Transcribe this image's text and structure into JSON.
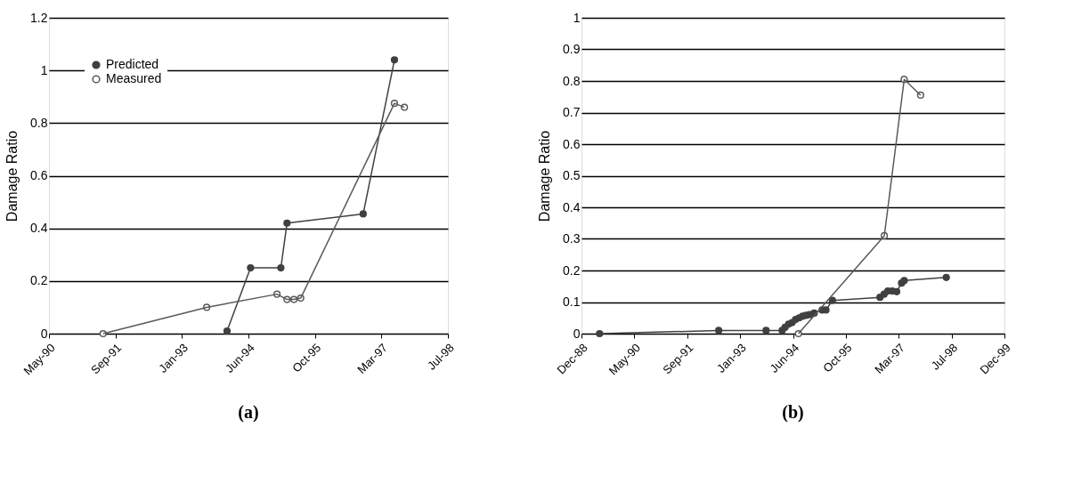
{
  "chart_data": [
    {
      "type": "line",
      "title": "(a)",
      "ylabel": "Damage Ratio",
      "marker": "circle",
      "line_style": "solid",
      "grid": "y",
      "legend": "top left",
      "xlim": [
        "1990-05-03",
        "1998-07-20"
      ],
      "xticks": [
        {
          "value": "1990-05-03",
          "label": "May-90"
        },
        {
          "value": "1991-09-15",
          "label": "Sep-91"
        },
        {
          "value": "1993-01-27",
          "label": "Jan-93"
        },
        {
          "value": "1994-06-11",
          "label": "Jun-94"
        },
        {
          "value": "1995-10-24",
          "label": "Oct-95"
        },
        {
          "value": "1997-03-07",
          "label": "Mar-97"
        },
        {
          "value": "1998-07-20",
          "label": "Jul-98"
        }
      ],
      "ylim": [
        0,
        1.2
      ],
      "yticks": [
        0,
        0.2,
        0.4,
        0.6,
        0.8,
        1,
        1.2
      ],
      "series": [
        {
          "name": "Predicted",
          "color": "#404040",
          "x": [
            "1994-01-01",
            "1994-06-27",
            "1995-02-10",
            "1995-03-28",
            "1996-10-21",
            "1997-06-13"
          ],
          "values": [
            0.01,
            0.25,
            0.25,
            0.42,
            0.455,
            1.04
          ]
        },
        {
          "name": "Measured",
          "color": "#595959",
          "x": [
            "1991-06-14",
            "1993-08-01",
            "1995-01-12",
            "1995-03-28",
            "1995-05-19",
            "1995-07-09",
            "1997-06-13",
            "1997-08-27"
          ],
          "values": [
            0,
            0.1,
            0.15,
            0.13,
            0.13,
            0.135,
            0.875,
            0.86
          ]
        }
      ]
    },
    {
      "type": "line",
      "title": "(b)",
      "ylabel": "Damage Ratio",
      "marker": "circle",
      "line_style": "solid",
      "grid": "y",
      "legend": "top left",
      "xlim": [
        "1988-12-19",
        "1999-12-02"
      ],
      "xticks": [
        {
          "value": "1988-12-19",
          "label": "Dec-88"
        },
        {
          "value": "1990-05-03",
          "label": "May-90"
        },
        {
          "value": "1991-09-15",
          "label": "Sep-91"
        },
        {
          "value": "1993-01-27",
          "label": "Jan-93"
        },
        {
          "value": "1994-06-11",
          "label": "Jun-94"
        },
        {
          "value": "1995-10-24",
          "label": "Oct-95"
        },
        {
          "value": "1997-03-07",
          "label": "Mar-97"
        },
        {
          "value": "1998-07-20",
          "label": "Jul-98"
        },
        {
          "value": "1999-12-02",
          "label": "Dec-99"
        }
      ],
      "ylim": [
        0,
        1
      ],
      "yticks": [
        0,
        0.1,
        0.2,
        0.3,
        0.4,
        0.5,
        0.6,
        0.7,
        0.8,
        0.9,
        1
      ],
      "series": [
        {
          "name": "Predicted",
          "color": "#404040",
          "x": [
            "1989-06-08",
            "1992-07-09",
            "1993-09-30",
            "1994-03-01",
            "1994-03-28",
            "1994-05-01",
            "1994-06-03",
            "1994-07-06",
            "1994-08-08",
            "1994-09-10",
            "1994-10-13",
            "1994-11-15",
            "1994-12-29",
            "1995-03-14",
            "1995-04-19",
            "1995-06-19",
            "1996-09-11",
            "1996-10-20",
            "1996-11-24",
            "1997-01-05",
            "1997-02-16",
            "1997-04-03",
            "1997-04-28",
            "1998-05-31"
          ],
          "values": [
            0,
            0.01,
            0.01,
            0.01,
            0.02,
            0.03,
            0.035,
            0.045,
            0.05,
            0.055,
            0.058,
            0.06,
            0.065,
            0.075,
            0.075,
            0.105,
            0.115,
            0.125,
            0.135,
            0.135,
            0.133,
            0.16,
            0.168,
            0.178
          ]
        },
        {
          "name": "Measured",
          "color": "#595959",
          "x": [
            "1994-08-02",
            "1996-10-22",
            "1997-04-28",
            "1997-09-30"
          ],
          "values": [
            0,
            0.31,
            0.805,
            0.755
          ]
        }
      ]
    }
  ]
}
